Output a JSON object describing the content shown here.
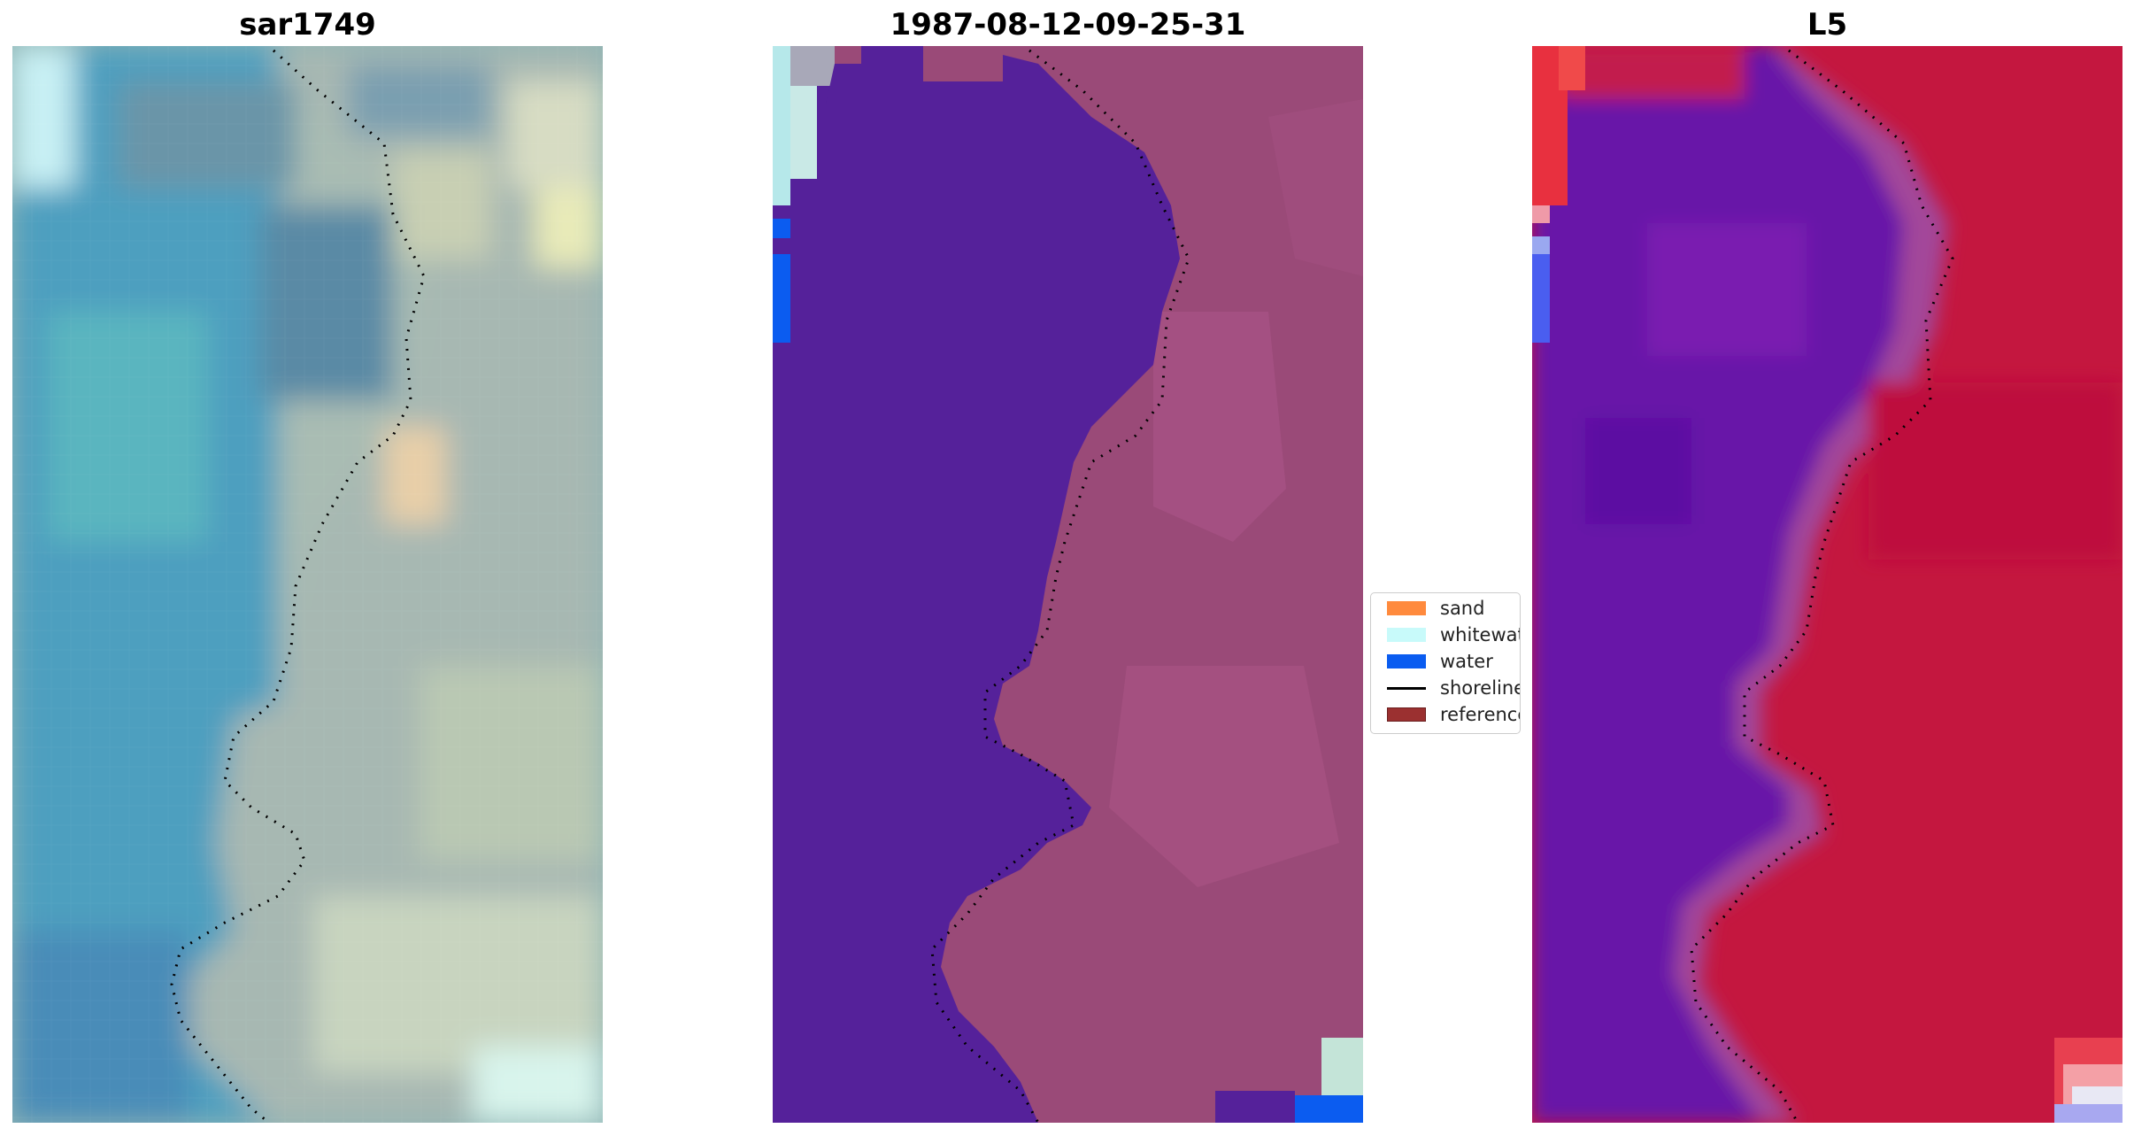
{
  "panels": [
    {
      "title": "sar1749"
    },
    {
      "title": "1987-08-12-09-25-31"
    },
    {
      "title": "L5"
    }
  ],
  "legend": {
    "items": [
      {
        "label": "sand",
        "color": "#ff8a3d",
        "kind": "patch"
      },
      {
        "label": "whitewater",
        "color": "#c8fafa",
        "kind": "patch"
      },
      {
        "label": "water",
        "color": "#0a5cf0",
        "kind": "patch"
      },
      {
        "label": "shoreline",
        "color": "#000000",
        "kind": "line"
      },
      {
        "label": "reference s",
        "color": "#9b3030",
        "kind": "patch"
      }
    ]
  },
  "colors": {
    "water_class": "#55219a",
    "land_class": "#9a4a78",
    "l5_water": "#6a1aa8",
    "l5_land": "#c8163f",
    "sar_water": "#4b9ec0",
    "sar_land": "#a8b8b0"
  }
}
